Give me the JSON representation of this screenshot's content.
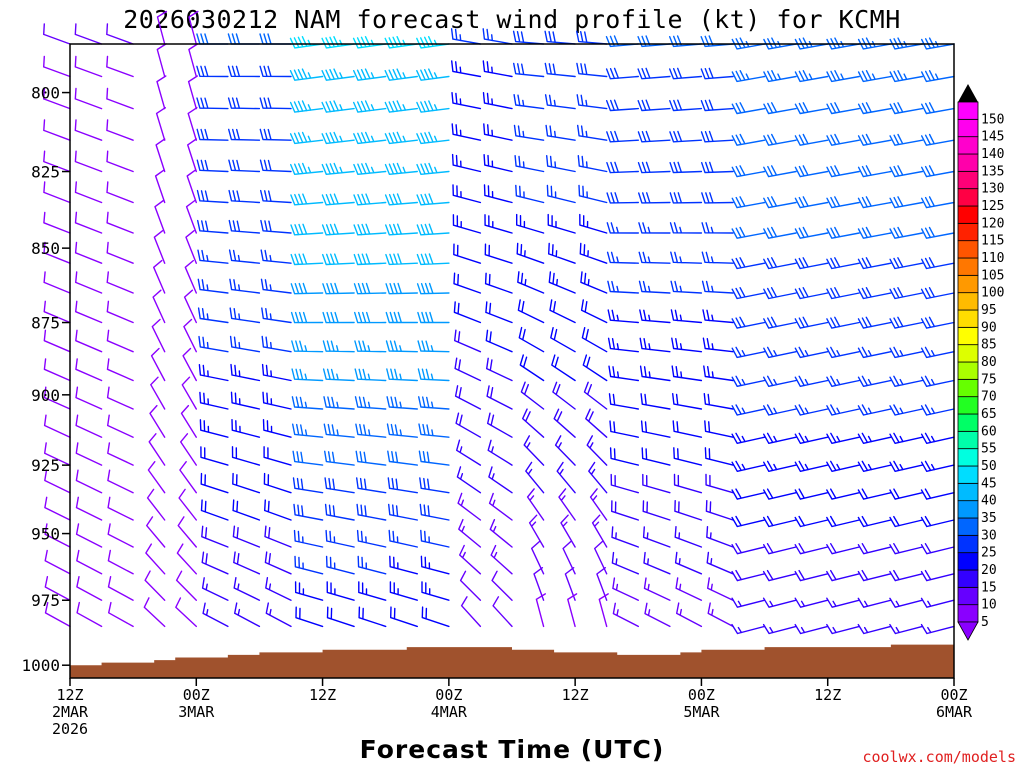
{
  "title": "2026030212 NAM forecast wind profile (kt) for KCMH",
  "credit": "coolwx.com/models",
  "colors": {
    "terrain": "#a0522d",
    "frame": "#000000",
    "credit": "#e02020"
  },
  "chart_data": {
    "type": "wind-barb-profile",
    "title": "2026030212 NAM forecast wind profile (kt) for KCMH",
    "xlabel": "Forecast Time (UTC)",
    "ylabel": "",
    "x_range_hours": [
      0,
      84
    ],
    "ylim_hPa": [
      1005,
      785
    ],
    "y_scale": "log-pressure",
    "x_ticks": [
      {
        "hour": 0,
        "lines": [
          "12Z",
          "2MAR",
          "2026"
        ]
      },
      {
        "hour": 12,
        "lines": [
          "00Z",
          "3MAR"
        ]
      },
      {
        "hour": 24,
        "lines": [
          "12Z"
        ]
      },
      {
        "hour": 36,
        "lines": [
          "00Z",
          "4MAR"
        ]
      },
      {
        "hour": 48,
        "lines": [
          "12Z"
        ]
      },
      {
        "hour": 60,
        "lines": [
          "00Z",
          "5MAR"
        ]
      },
      {
        "hour": 72,
        "lines": [
          "12Z"
        ]
      },
      {
        "hour": 84,
        "lines": [
          "00Z",
          "6MAR"
        ]
      }
    ],
    "y_ticks": [
      800,
      825,
      850,
      875,
      900,
      925,
      950,
      975,
      1000
    ],
    "barb_levels_hPa": [
      785,
      795,
      805,
      815,
      825,
      835,
      845,
      855,
      865,
      875,
      885,
      895,
      905,
      915,
      925,
      935,
      945,
      955,
      965,
      975,
      985
    ],
    "time_step_hours": 3,
    "surface_pressure_hPa": [
      [
        0,
        1000
      ],
      [
        3,
        999
      ],
      [
        6,
        999
      ],
      [
        8,
        998
      ],
      [
        10,
        997
      ],
      [
        12,
        997
      ],
      [
        15,
        996
      ],
      [
        18,
        995
      ],
      [
        21,
        995
      ],
      [
        24,
        994
      ],
      [
        28,
        994
      ],
      [
        32,
        993
      ],
      [
        36,
        993
      ],
      [
        39,
        993
      ],
      [
        42,
        994
      ],
      [
        46,
        995
      ],
      [
        48,
        995
      ],
      [
        52,
        996
      ],
      [
        55,
        996
      ],
      [
        58,
        995
      ],
      [
        60,
        994
      ],
      [
        63,
        994
      ],
      [
        66,
        993
      ],
      [
        70,
        993
      ],
      [
        72,
        993
      ],
      [
        75,
        993
      ],
      [
        78,
        992
      ],
      [
        84,
        992
      ]
    ],
    "wind_regimes": [
      {
        "from_hour": 0,
        "to_hour": 9,
        "direction_deg": 290,
        "speed_kt": 10,
        "surface_direction_deg": 300,
        "surface_speed_kt": 8
      },
      {
        "from_hour": 9,
        "to_hour": 15,
        "direction_deg": 345,
        "speed_kt": 9,
        "surface_direction_deg": 310,
        "surface_speed_kt": 8
      },
      {
        "from_hour": 15,
        "to_hour": 24,
        "direction_deg": 270,
        "speed_kt": 30,
        "surface_direction_deg": 300,
        "surface_speed_kt": 15
      },
      {
        "from_hour": 24,
        "to_hour": 39,
        "direction_deg": 262,
        "speed_kt": 45,
        "surface_direction_deg": 290,
        "surface_speed_kt": 20
      },
      {
        "from_hour": 39,
        "to_hour": 45,
        "direction_deg": 280,
        "speed_kt": 25,
        "surface_direction_deg": 320,
        "surface_speed_kt": 10
      },
      {
        "from_hour": 45,
        "to_hour": 54,
        "direction_deg": 275,
        "speed_kt": 28,
        "surface_direction_deg": 350,
        "surface_speed_kt": 8
      },
      {
        "from_hour": 54,
        "to_hour": 66,
        "direction_deg": 265,
        "speed_kt": 30,
        "surface_direction_deg": 300,
        "surface_speed_kt": 12
      },
      {
        "from_hour": 66,
        "to_hour": 84,
        "direction_deg": 260,
        "speed_kt": 33,
        "surface_direction_deg": 255,
        "surface_speed_kt": 15
      }
    ],
    "colorbar": {
      "unit": "kt",
      "labels": [
        5,
        10,
        15,
        20,
        25,
        30,
        35,
        40,
        45,
        50,
        55,
        60,
        65,
        70,
        75,
        80,
        85,
        90,
        95,
        100,
        105,
        110,
        115,
        120,
        125,
        130,
        135,
        140,
        145,
        150
      ],
      "colors": [
        "#8a00ff",
        "#6600ff",
        "#3300ff",
        "#0000ff",
        "#0033ff",
        "#0066ff",
        "#0099ff",
        "#00bbff",
        "#00ddff",
        "#00ffe0",
        "#00ffaa",
        "#00ff66",
        "#22ff22",
        "#66ff00",
        "#aaff00",
        "#ddff00",
        "#ffff00",
        "#ffdd00",
        "#ffbb00",
        "#ff9900",
        "#ff7700",
        "#ff5500",
        "#ff2200",
        "#ff0000",
        "#ff0044",
        "#ff0077",
        "#ff00aa",
        "#ff00cc",
        "#ff00ee",
        "#ff00ff"
      ]
    }
  }
}
